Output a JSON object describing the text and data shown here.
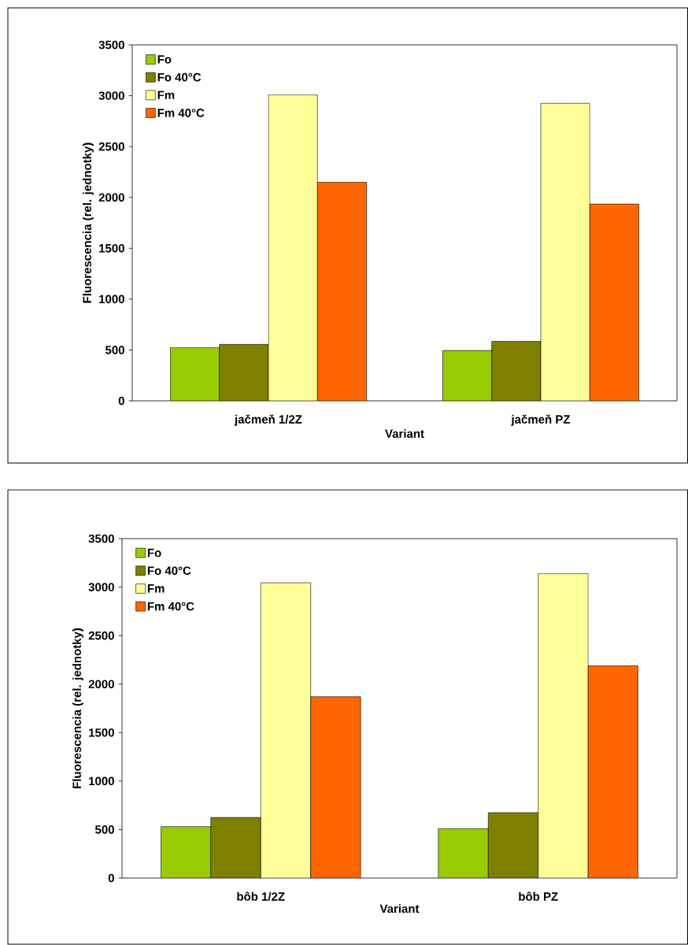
{
  "chart_data": [
    {
      "type": "bar",
      "categories": [
        "jačmeň 1/2Z",
        "jačmeň PZ"
      ],
      "xlabel": "Variant",
      "ylabel": "Fluorescencia (rel. jednotky)",
      "ylim": [
        0,
        3500
      ],
      "yticks": [
        0,
        500,
        1000,
        1500,
        2000,
        2500,
        3000,
        3500
      ],
      "legend": "top left",
      "series": [
        {
          "name": "Fo",
          "color": "#99cc00",
          "values": [
            525,
            495
          ]
        },
        {
          "name": "Fo 40°C",
          "color": "#808000",
          "values": [
            555,
            585
          ]
        },
        {
          "name": "Fm",
          "color": "#ffff99",
          "values": [
            3010,
            2925
          ]
        },
        {
          "name": "Fm 40°C",
          "color": "#ff6600",
          "values": [
            2150,
            1935
          ]
        }
      ]
    },
    {
      "type": "bar",
      "categories": [
        "bôb 1/2Z",
        "bôb PZ"
      ],
      "xlabel": "Variant",
      "ylabel": "Fluorescencia (rel. jednotky)",
      "ylim": [
        0,
        3500
      ],
      "yticks": [
        0,
        500,
        1000,
        1500,
        2000,
        2500,
        3000,
        3500
      ],
      "legend": "top left",
      "series": [
        {
          "name": "Fo",
          "color": "#99cc00",
          "values": [
            530,
            510
          ]
        },
        {
          "name": "Fo 40°C",
          "color": "#808000",
          "values": [
            625,
            675
          ]
        },
        {
          "name": "Fm",
          "color": "#ffff99",
          "values": [
            3045,
            3140
          ]
        },
        {
          "name": "Fm 40°C",
          "color": "#ff6600",
          "values": [
            1870,
            2190
          ]
        }
      ]
    }
  ]
}
